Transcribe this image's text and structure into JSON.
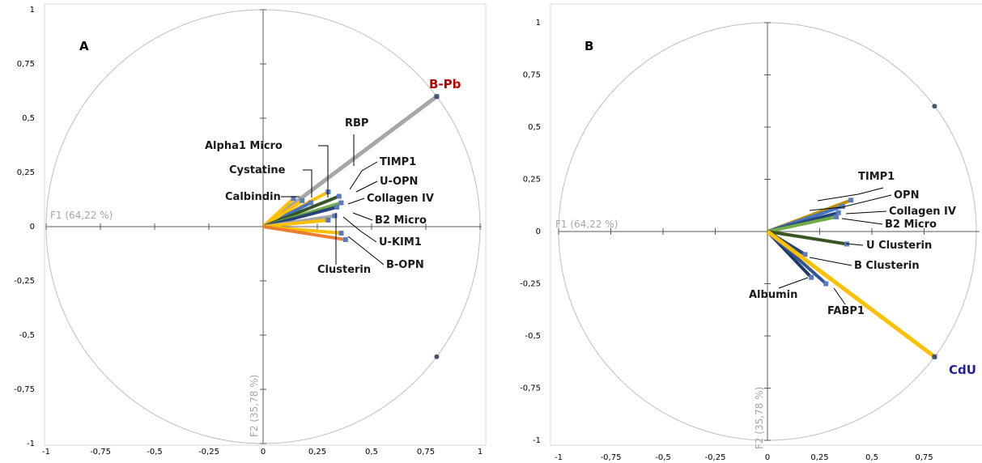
{
  "chart_data": [
    {
      "type": "scatter",
      "panel_label": "A",
      "xlabel": "F1 (64,22 %)",
      "ylabel": "F2 (35,78 %)",
      "xlim": [
        -1,
        1
      ],
      "ylim": [
        -1,
        1
      ],
      "x_ticks": [
        "-1",
        "-0,75",
        "-0,5",
        "-0,25",
        "0",
        "0,25",
        "0,5",
        "0,75",
        "1"
      ],
      "y_ticks": [
        "1",
        "0,75",
        "0,5",
        "0,25",
        "0",
        "-0,25",
        "-0,5",
        "-0,75",
        "-1"
      ],
      "correlation_circle": true,
      "vectors": [
        {
          "name": "B-Pb",
          "x": 0.8,
          "y": 0.6,
          "color": "#a6a6a6",
          "highlight": true,
          "label_color": "#c00000"
        },
        {
          "name": "RBP",
          "x": 0.3,
          "y": 0.16,
          "color": "#ffc000"
        },
        {
          "name": "Alpha1 Micro",
          "x": 0.22,
          "y": 0.11,
          "color": "#4472c4"
        },
        {
          "name": "Cystatine",
          "x": 0.18,
          "y": 0.12,
          "color": "#ffc000"
        },
        {
          "name": "Calbindin",
          "x": 0.14,
          "y": 0.13,
          "color": "#ffc000"
        },
        {
          "name": "TIMP1",
          "x": 0.35,
          "y": 0.14,
          "color": "#375623"
        },
        {
          "name": "U-OPN",
          "x": 0.36,
          "y": 0.11,
          "color": "#70ad47"
        },
        {
          "name": "Collagen IV",
          "x": 0.34,
          "y": 0.09,
          "color": "#264478"
        },
        {
          "name": "B2 Micro",
          "x": 0.33,
          "y": 0.05,
          "color": "#a6a6a6"
        },
        {
          "name": "U-KIM1",
          "x": 0.3,
          "y": 0.03,
          "color": "#ffc000"
        },
        {
          "name": "Clusterin",
          "x": 0.36,
          "y": -0.03,
          "color": "#ffc000"
        },
        {
          "name": "B-OPN",
          "x": 0.38,
          "y": -0.06,
          "color": "#ed7d31"
        }
      ],
      "extra_points": [
        {
          "x": 0.8,
          "y": 0.6
        },
        {
          "x": 0.8,
          "y": -0.6
        }
      ]
    },
    {
      "type": "scatter",
      "panel_label": "B",
      "xlabel": "F1 (64,22 %)",
      "ylabel": "F2 (35,78 %)",
      "xlim": [
        -1,
        1
      ],
      "ylim": [
        -1,
        1
      ],
      "x_ticks": [
        "-1",
        "-0,75",
        "-0,5",
        "-0,25",
        "0",
        "0,25",
        "0,5",
        "0,75"
      ],
      "y_ticks": [
        "1",
        "0,75",
        "0,5",
        "0,25",
        "0",
        "-0,25",
        "-0,5",
        "-0,75",
        "-1"
      ],
      "correlation_circle": true,
      "vectors": [
        {
          "name": "TIMP1",
          "x": 0.4,
          "y": 0.15,
          "color": "#bf9000"
        },
        {
          "name": "OPN",
          "x": 0.36,
          "y": 0.12,
          "color": "#4472c4"
        },
        {
          "name": "Collagen IV",
          "x": 0.34,
          "y": 0.09,
          "color": "#264478"
        },
        {
          "name": "B2 Micro",
          "x": 0.33,
          "y": 0.07,
          "color": "#70ad47"
        },
        {
          "name": "U Clusterin",
          "x": 0.38,
          "y": -0.06,
          "color": "#375623"
        },
        {
          "name": "B Clusterin",
          "x": 0.18,
          "y": -0.11,
          "color": "#264478"
        },
        {
          "name": "Albumin",
          "x": 0.21,
          "y": -0.22,
          "color": "#203864"
        },
        {
          "name": "FABP1",
          "x": 0.28,
          "y": -0.25,
          "color": "#2f5597"
        },
        {
          "name": "CdU",
          "x": 0.8,
          "y": -0.6,
          "color": "#ffc000",
          "highlight": true,
          "label_color": "#1f1f9f"
        }
      ],
      "extra_points": [
        {
          "x": 0.8,
          "y": 0.6
        },
        {
          "x": 0.8,
          "y": -0.6
        }
      ]
    }
  ]
}
